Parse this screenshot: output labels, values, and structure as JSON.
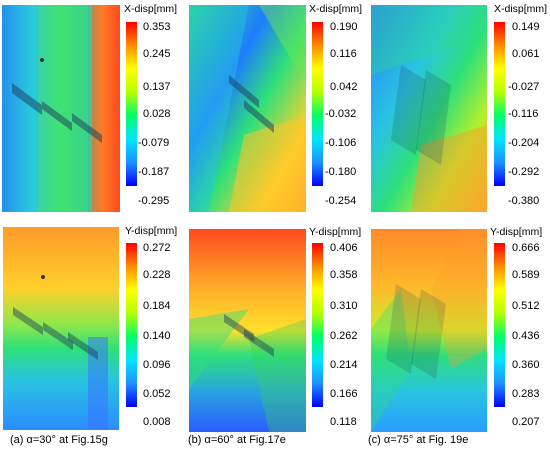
{
  "rows": [
    {
      "row": "top",
      "panels": [
        {
          "id": "p1",
          "colorbar": {
            "title": "X-disp[mm]",
            "ticks": [
              "0.353",
              "0.245",
              "0.137",
              "0.028",
              "-0.079",
              "-0.187",
              "-0.295"
            ]
          }
        },
        {
          "id": "p2",
          "colorbar": {
            "title": "X-disp[mm]",
            "ticks": [
              "0.190",
              "0.116",
              "0.042",
              "-0.032",
              "-0.106",
              "-0.180",
              "-0.254"
            ]
          }
        },
        {
          "id": "p3",
          "colorbar": {
            "title": "X-disp[mm]",
            "ticks": [
              "0.149",
              "0.061",
              "-0.027",
              "-0.116",
              "-0.204",
              "-0.292",
              "-0.380"
            ]
          }
        }
      ]
    },
    {
      "row": "bottom",
      "panels": [
        {
          "id": "p4",
          "colorbar": {
            "title": "Y-disp[mm]",
            "ticks": [
              "0.272",
              "0.228",
              "0.184",
              "0.140",
              "0.096",
              "0.052",
              "0.008"
            ]
          }
        },
        {
          "id": "p5",
          "colorbar": {
            "title": "Y-disp[mm]",
            "ticks": [
              "0.406",
              "0.358",
              "0.310",
              "0.262",
              "0.214",
              "0.166",
              "0.118"
            ]
          }
        },
        {
          "id": "p6",
          "colorbar": {
            "title": "Y-disp[mm]",
            "ticks": [
              "0.666",
              "0.589",
              "0.512",
              "0.436",
              "0.360",
              "0.283",
              "0.207"
            ]
          }
        }
      ]
    }
  ],
  "captions": [
    "(a) α=30° at Fig.15g",
    "(b) α=60° at Fig.17e",
    "(c) α=75° at Fig. 19e"
  ],
  "colormap": [
    "#0000ff",
    "#1e90ff",
    "#00e5ff",
    "#00ff66",
    "#b4ff00",
    "#ffff00",
    "#ff8c00",
    "#ff0000"
  ]
}
